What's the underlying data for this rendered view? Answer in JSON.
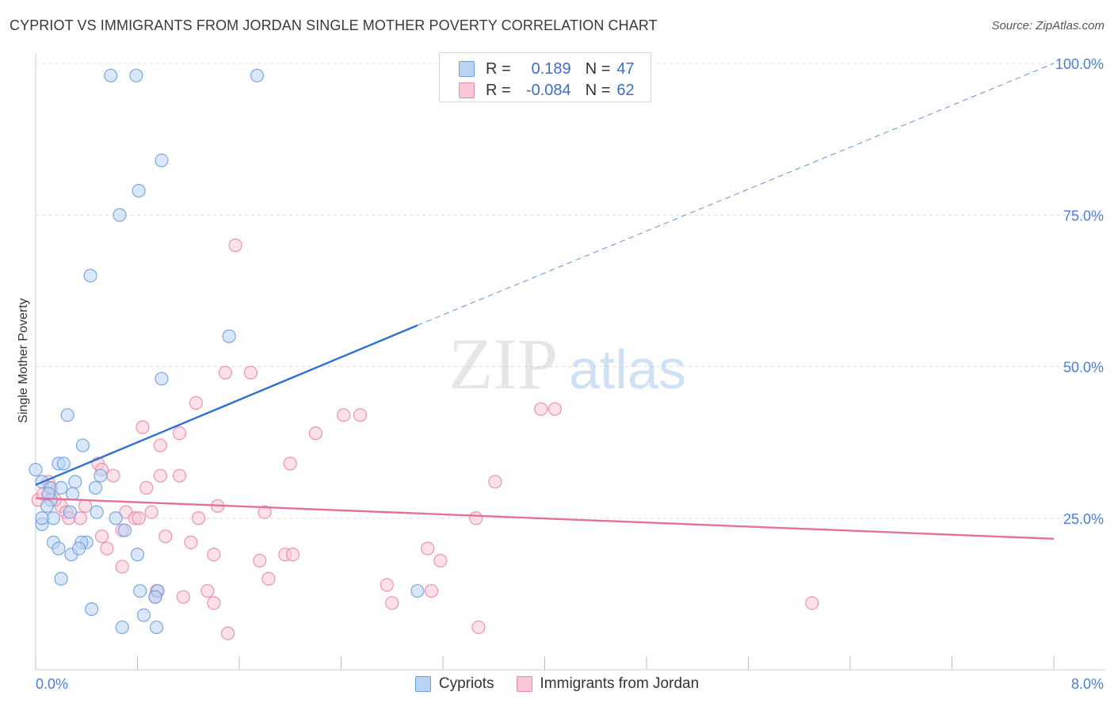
{
  "title": "CYPRIOT VS IMMIGRANTS FROM JORDAN SINGLE MOTHER POVERTY CORRELATION CHART",
  "source": "Source: ZipAtlas.com",
  "watermark": {
    "zip": "ZIP",
    "atlas": "atlas"
  },
  "legend": {
    "rows": [
      {
        "r_label": "R =",
        "r_value": "0.189",
        "n_label": "N =",
        "n_value": "47",
        "color": "#6f9ee0"
      },
      {
        "r_label": "R =",
        "r_value": "-0.084",
        "n_label": "N =",
        "n_value": "62",
        "color": "#e98aa9"
      }
    ]
  },
  "bottom_legend": [
    "Cypriots",
    "Immigrants from Jordan"
  ],
  "colors": {
    "blue_fill": "#b9d3f3",
    "blue_stroke": "#6f9ee0",
    "blue_line": "#2e6fd0",
    "pink_fill": "#f9c8d7",
    "pink_stroke": "#e98aa9",
    "pink_line": "#e2729b",
    "tick_text": "#4a7fd0",
    "grid": "#dcdcdc"
  },
  "chart_data": {
    "type": "scatter",
    "title": "CYPRIOT VS IMMIGRANTS FROM JORDAN SINGLE MOTHER POVERTY CORRELATION CHART",
    "xlabel": "",
    "ylabel": "Single Mother Poverty",
    "xlim": [
      0,
      8
    ],
    "ylim": [
      0,
      100
    ],
    "x_ticks": [
      "0.0%",
      "8.0%"
    ],
    "y_ticks": [
      "25.0%",
      "50.0%",
      "75.0%",
      "100.0%"
    ],
    "grid": true,
    "series": [
      {
        "name": "Cypriots",
        "points": [
          [
            0.59,
            98
          ],
          [
            0.79,
            98
          ],
          [
            1.74,
            98
          ],
          [
            0.99,
            84
          ],
          [
            0.81,
            79
          ],
          [
            0.66,
            75
          ],
          [
            0.43,
            65
          ],
          [
            1.52,
            55
          ],
          [
            0.99,
            48
          ],
          [
            0.25,
            42
          ],
          [
            0.37,
            37
          ],
          [
            0.18,
            34
          ],
          [
            0.22,
            34
          ],
          [
            0.0,
            33
          ],
          [
            0.05,
            31
          ],
          [
            0.12,
            30
          ],
          [
            0.31,
            31
          ],
          [
            0.51,
            32
          ],
          [
            0.47,
            30
          ],
          [
            0.29,
            29
          ],
          [
            0.12,
            28
          ],
          [
            0.09,
            27
          ],
          [
            0.27,
            26
          ],
          [
            0.48,
            26
          ],
          [
            0.63,
            25
          ],
          [
            0.05,
            24
          ],
          [
            0.14,
            25
          ],
          [
            0.7,
            23
          ],
          [
            0.14,
            21
          ],
          [
            0.4,
            21
          ],
          [
            0.36,
            21
          ],
          [
            0.18,
            20
          ],
          [
            0.28,
            19
          ],
          [
            0.34,
            20
          ],
          [
            0.8,
            19
          ],
          [
            0.2,
            15
          ],
          [
            0.82,
            13
          ],
          [
            0.96,
            13
          ],
          [
            0.94,
            12
          ],
          [
            3.0,
            13
          ],
          [
            0.44,
            10
          ],
          [
            0.85,
            9
          ],
          [
            0.68,
            7
          ],
          [
            0.95,
            7
          ],
          [
            0.05,
            25
          ],
          [
            0.1,
            29
          ],
          [
            0.2,
            30
          ]
        ]
      },
      {
        "name": "Immigrants from Jordan",
        "points": [
          [
            1.57,
            70
          ],
          [
            1.49,
            49
          ],
          [
            1.69,
            49
          ],
          [
            1.26,
            44
          ],
          [
            2.2,
            39
          ],
          [
            2.42,
            42
          ],
          [
            2.55,
            42
          ],
          [
            3.97,
            43
          ],
          [
            4.08,
            43
          ],
          [
            0.84,
            40
          ],
          [
            1.13,
            39
          ],
          [
            0.98,
            37
          ],
          [
            0.49,
            34
          ],
          [
            2.0,
            34
          ],
          [
            0.52,
            33
          ],
          [
            0.61,
            32
          ],
          [
            0.98,
            32
          ],
          [
            1.13,
            32
          ],
          [
            3.61,
            31
          ],
          [
            0.87,
            30
          ],
          [
            0.11,
            30
          ],
          [
            0.2,
            27
          ],
          [
            0.39,
            27
          ],
          [
            1.43,
            27
          ],
          [
            0.71,
            26
          ],
          [
            1.8,
            26
          ],
          [
            0.24,
            26
          ],
          [
            0.35,
            25
          ],
          [
            0.78,
            25
          ],
          [
            0.81,
            25
          ],
          [
            0.91,
            26
          ],
          [
            0.26,
            25
          ],
          [
            1.28,
            25
          ],
          [
            3.46,
            25
          ],
          [
            0.68,
            23
          ],
          [
            1.02,
            22
          ],
          [
            0.52,
            22
          ],
          [
            0.56,
            20
          ],
          [
            1.22,
            21
          ],
          [
            1.4,
            19
          ],
          [
            1.76,
            18
          ],
          [
            1.96,
            19
          ],
          [
            2.02,
            19
          ],
          [
            3.08,
            20
          ],
          [
            3.18,
            18
          ],
          [
            0.68,
            17
          ],
          [
            1.83,
            15
          ],
          [
            0.95,
            13
          ],
          [
            0.94,
            12
          ],
          [
            1.16,
            12
          ],
          [
            1.35,
            13
          ],
          [
            1.4,
            11
          ],
          [
            2.76,
            14
          ],
          [
            2.8,
            11
          ],
          [
            3.11,
            13
          ],
          [
            3.48,
            7
          ],
          [
            1.51,
            6
          ],
          [
            6.1,
            11
          ],
          [
            0.02,
            28
          ],
          [
            0.1,
            31
          ],
          [
            0.06,
            29
          ],
          [
            0.15,
            28
          ]
        ]
      }
    ],
    "trend_lines": [
      {
        "series": "Cypriots",
        "from": [
          0,
          30.5
        ],
        "to": [
          3.0,
          56.8
        ],
        "extended_to": [
          8,
          100
        ]
      },
      {
        "series": "Immigrants from Jordan",
        "from": [
          0,
          28.3
        ],
        "to": [
          8,
          21.6
        ]
      }
    ]
  }
}
